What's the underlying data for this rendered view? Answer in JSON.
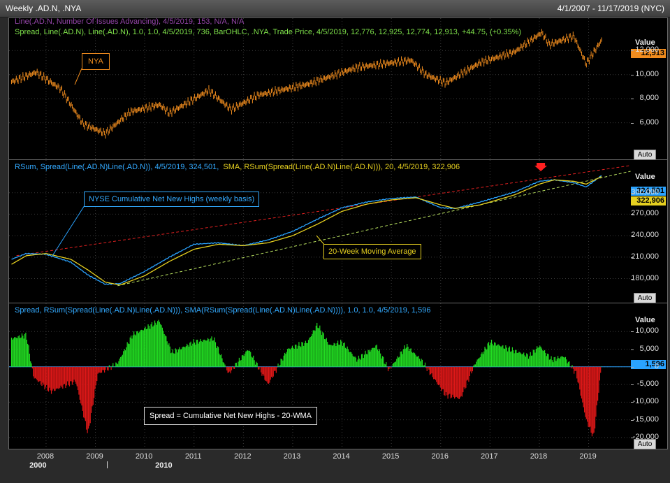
{
  "window": {
    "title": "Weekly .AD.N, .NYA",
    "date_range": "4/1/2007 - 11/17/2019 (NYC)"
  },
  "panel1": {
    "legend_top": "Line(.AD.N, Number Of Issues Advancing), 4/5/2019, 153, N/A, N/A",
    "legend_main": "Spread, Line(.AD.N), Line(.AD.N), 1.0, 1.0, 4/5/2019, 736, BarOHLC, .NYA, Trade Price, 4/5/2019, 12,776, 12,925, 12,774, 12,913, +44.75, (+0.35%)",
    "value_label": "Value",
    "current_value": "12,913",
    "auto_label": "Auto",
    "ticks": [
      "12,000",
      "10,000",
      "8,000",
      "6,000"
    ],
    "callout": "NYA"
  },
  "panel2": {
    "legend_a": "RSum, Spread(Line(.AD.N)Line(.AD.N)), 4/5/2019, 324,501,",
    "legend_b": "SMA, RSum(Spread(Line(.AD.N)Line(.AD.N))), 20, 4/5/2019, 322,906",
    "value_label": "Value",
    "current_value_a": "324,501",
    "current_value_b": "322,906",
    "ticks": [
      "300,000",
      "270,000",
      "240,000",
      "210,000",
      "180,000"
    ],
    "auto_label": "Auto",
    "callout_cum": "NYSE Cumulative Net New Highs (weekly basis)",
    "callout_ma": "20-Week Moving Average"
  },
  "panel3": {
    "legend": "Spread, RSum(Spread(Line(.AD.N)Line(.AD.N))), SMA(RSum(Spread(Line(.AD.N)Line(.AD.N)))), 1.0, 1.0, 4/5/2019, 1,596",
    "value_label": "Value",
    "current_value": "1,596",
    "ticks": [
      "10,000",
      "5,000",
      "0",
      "-5,000",
      "-10,000",
      "-15,000",
      "-20,000"
    ],
    "auto_label": "Auto",
    "callout": "Spread = Cumulative Net New Highs - 20-WMA"
  },
  "xaxis": {
    "years": [
      "2008",
      "2009",
      "2010",
      "2011",
      "2012",
      "2013",
      "2014",
      "2015",
      "2016",
      "2017",
      "2018",
      "2019"
    ],
    "decades": [
      "2000",
      "2010"
    ]
  },
  "colors": {
    "nya": "#f08c1e",
    "cum": "#2aa3ff",
    "sma": "#e6d020",
    "pos": "#22dd22",
    "neg": "#e01818",
    "legend_green": "#7ee04a",
    "legend_cyan": "#33aaff",
    "legend_yellow": "#e6d020",
    "trend_red": "#e02020",
    "trend_green": "#b8e060"
  },
  "chart_data": [
    {
      "type": "line",
      "title": "NYA",
      "x": [
        2007.3,
        2007.8,
        2008.3,
        2008.75,
        2009.2,
        2009.7,
        2010.3,
        2010.5,
        2011.3,
        2011.75,
        2012.3,
        2013.3,
        2014.3,
        2015.4,
        2015.7,
        2016.1,
        2016.8,
        2017.5,
        2018.05,
        2018.2,
        2018.7,
        2018.95,
        2019.27
      ],
      "values": [
        9400,
        10200,
        8800,
        5900,
        5100,
        6900,
        7500,
        6800,
        8700,
        7100,
        8300,
        9200,
        10600,
        11200,
        10000,
        9300,
        11000,
        11900,
        13500,
        12500,
        13200,
        10900,
        12913
      ],
      "ylim": [
        4000,
        14000
      ],
      "ylabel": "Value"
    },
    {
      "type": "line",
      "title": "NYSE Cumulative Net New Highs (weekly basis)",
      "series": [
        {
          "name": "RSum",
          "x": [
            2007.3,
            2007.6,
            2008.0,
            2008.5,
            2008.85,
            2009.2,
            2009.5,
            2010.0,
            2010.5,
            2011.0,
            2011.5,
            2012.0,
            2012.5,
            2013.0,
            2013.5,
            2014.0,
            2014.5,
            2015.0,
            2015.5,
            2016.0,
            2016.3,
            2016.8,
            2017.5,
            2018.0,
            2018.3,
            2018.7,
            2018.95,
            2019.27
          ],
          "values": [
            207000,
            215000,
            214000,
            203000,
            185000,
            172000,
            173000,
            190000,
            210000,
            228000,
            230000,
            226000,
            234000,
            246000,
            263000,
            279000,
            287000,
            292000,
            294000,
            279000,
            278000,
            287000,
            301000,
            316000,
            318000,
            314000,
            308000,
            324501
          ]
        },
        {
          "name": "SMA",
          "x": [
            2007.3,
            2007.6,
            2008.0,
            2008.5,
            2008.85,
            2009.2,
            2009.5,
            2010.0,
            2010.5,
            2011.0,
            2011.5,
            2012.0,
            2012.5,
            2013.0,
            2013.5,
            2014.0,
            2014.5,
            2015.0,
            2015.5,
            2016.0,
            2016.3,
            2016.8,
            2017.5,
            2018.0,
            2018.3,
            2018.7,
            2018.95,
            2019.27
          ],
          "values": [
            200000,
            212000,
            215000,
            207000,
            192000,
            175000,
            171000,
            184000,
            204000,
            221000,
            228000,
            226000,
            230000,
            240000,
            256000,
            274000,
            284000,
            290000,
            293000,
            283000,
            278000,
            283000,
            297000,
            312000,
            318000,
            316000,
            312000,
            322906
          ]
        }
      ],
      "ylim": [
        160000,
        330000
      ],
      "ylabel": "Value"
    },
    {
      "type": "bar",
      "title": "Spread = Cumulative Net New Highs - 20-WMA",
      "x_anchors": [
        2007.3,
        2007.6,
        2007.75,
        2008.1,
        2008.6,
        2008.85,
        2009.05,
        2009.45,
        2009.75,
        2010.3,
        2010.55,
        2011.0,
        2011.4,
        2011.7,
        2012.1,
        2012.5,
        2012.9,
        2013.3,
        2013.5,
        2013.75,
        2014.0,
        2014.3,
        2014.7,
        2014.95,
        2015.3,
        2015.6,
        2015.8,
        2016.1,
        2016.4,
        2016.7,
        2017.0,
        2017.4,
        2017.8,
        2018.0,
        2018.25,
        2018.5,
        2018.75,
        2018.95,
        2019.1,
        2019.27
      ],
      "values": [
        8000,
        9000,
        -3000,
        -7000,
        -4000,
        -19000,
        -2000,
        1000,
        9000,
        13000,
        4000,
        7000,
        8000,
        -2000,
        5000,
        -5000,
        5000,
        7000,
        12000,
        6000,
        7000,
        2000,
        6000,
        -1000,
        6000,
        2000,
        -2000,
        -8000,
        -9000,
        1000,
        7000,
        5000,
        3000,
        6000,
        2000,
        3000,
        -2000,
        -15000,
        -20000,
        1596
      ],
      "ylim": [
        -22000,
        14000
      ],
      "ylabel": "Value"
    }
  ]
}
